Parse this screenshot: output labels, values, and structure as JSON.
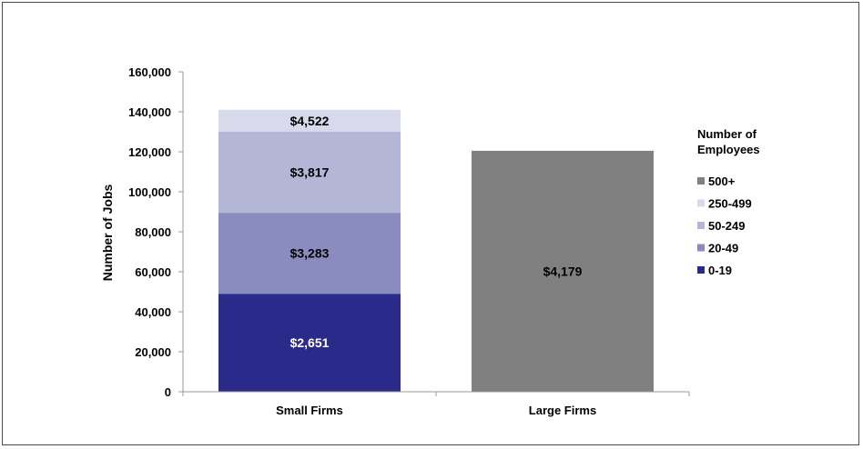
{
  "chart_data": {
    "type": "bar",
    "stacked": true,
    "categories": [
      "Small Firms",
      "Large Firms"
    ],
    "xlabel": "",
    "ylabel": "Number of Jobs",
    "ylim": [
      0,
      160000
    ],
    "yticks": [
      0,
      20000,
      40000,
      60000,
      80000,
      100000,
      120000,
      140000,
      160000
    ],
    "ytick_labels": [
      "0",
      "20,000",
      "40,000",
      "60,000",
      "80,000",
      "100,000",
      "120,000",
      "140,000",
      "160,000"
    ],
    "grid": false,
    "legend": {
      "title": "Number of Employees",
      "title_lines": [
        "Number of",
        "Employees"
      ],
      "position": "right",
      "entries": [
        "500+",
        "250-499",
        "50-249",
        "20-49",
        "0-19"
      ]
    },
    "series": [
      {
        "name": "0-19",
        "color": "#2a2a8a",
        "values": [
          49000,
          0
        ],
        "labels": [
          "$2,651",
          ""
        ],
        "label_color": "#ffffff"
      },
      {
        "name": "20-49",
        "color": "#8a8cc0",
        "values": [
          40500,
          0
        ],
        "labels": [
          "$3,283",
          ""
        ],
        "label_color": "#000000"
      },
      {
        "name": "50-249",
        "color": "#b4b6d8",
        "values": [
          40500,
          0
        ],
        "labels": [
          "$3,817",
          ""
        ],
        "label_color": "#000000"
      },
      {
        "name": "250-499",
        "color": "#d8d9ea",
        "values": [
          11000,
          0
        ],
        "labels": [
          "$4,522",
          ""
        ],
        "label_color": "#000000"
      },
      {
        "name": "500+",
        "color": "#808080",
        "values": [
          0,
          120500
        ],
        "labels": [
          "",
          "$4,179"
        ],
        "label_color": "#000000"
      }
    ]
  }
}
